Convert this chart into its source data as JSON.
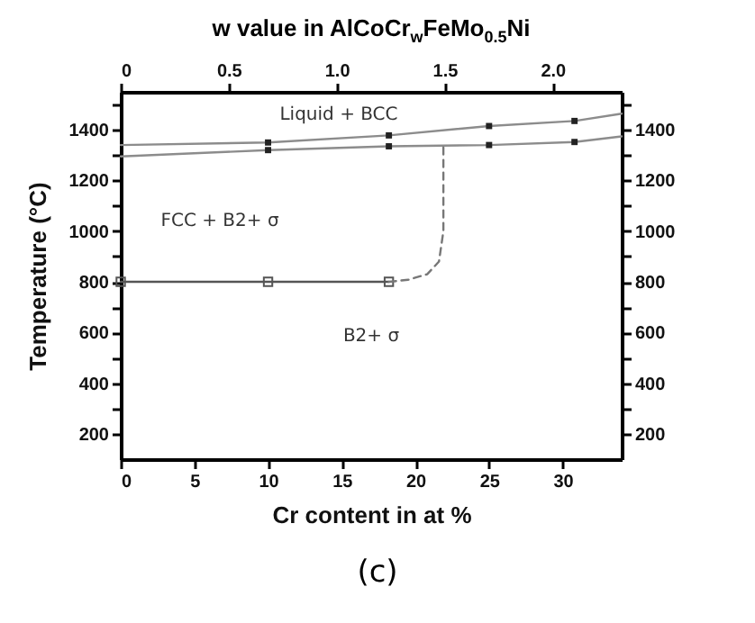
{
  "chart_data": {
    "type": "line",
    "xlabel": "Cr content in at %",
    "ylabel": "Temperature (°C)",
    "x2label": "w value in AlCoCr$_{w}$FeMo$_{0.5}$Ni",
    "xlim": [
      0,
      34
    ],
    "xticks": [
      0,
      5,
      10,
      15,
      20,
      25,
      30
    ],
    "x2lim": [
      0,
      2.32
    ],
    "x2ticks": [
      0,
      0.5,
      {
        "value": 1,
        "label": "1.0"
      },
      1.5,
      {
        "value": 2,
        "label": "2.0"
      }
    ],
    "ylim": [
      100,
      1550
    ],
    "yticks": [
      200,
      {
        "value": 300,
        "label": null
      },
      400,
      {
        "value": 500,
        "label": null
      },
      600,
      {
        "value": 700,
        "label": null
      },
      800,
      {
        "value": 900,
        "label": null
      },
      1000,
      {
        "value": 1100,
        "label": null
      },
      1200,
      {
        "value": 1300,
        "label": null
      },
      1400,
      {
        "value": 1500,
        "label": null
      }
    ],
    "y2lim": [
      100,
      1550
    ],
    "y2ticks": [
      200,
      {
        "value": 300,
        "label": null
      },
      400,
      {
        "value": 500,
        "label": null
      },
      600,
      {
        "value": 700,
        "label": null
      },
      800,
      {
        "value": 900,
        "label": null
      },
      1000,
      {
        "value": 1100,
        "label": null
      },
      1200,
      {
        "value": 1300,
        "label": null
      },
      1400,
      {
        "value": 1500,
        "label": null
      }
    ],
    "grid": false,
    "series": [
      {
        "x": [
          0,
          10,
          18.2,
          25,
          30.8,
          34
        ],
        "values": [
          1340,
          1350,
          1378,
          1415,
          1435,
          1464
        ],
        "color": "#8c8c8c"
      },
      {
        "x": [
          0,
          10,
          18.2,
          25,
          30.8,
          34
        ],
        "values": [
          1295,
          1320,
          1335,
          1340,
          1352,
          1374
        ],
        "color": "#8c8c8c"
      },
      {
        "x": [
          0,
          10,
          18.2
        ],
        "values": [
          800,
          800,
          800
        ],
        "color": "#555555",
        "marker": "square"
      },
      {
        "x": [
          18.2,
          19.5,
          20.8,
          21.6,
          21.9,
          21.9
        ],
        "values": [
          800,
          808,
          830,
          880,
          1000,
          1338
        ],
        "color": "#777777",
        "line_style": "dashed"
      },
      {
        "type": "scatter",
        "x": [
          10,
          18.2,
          25,
          30.8,
          10,
          18.2,
          25,
          30.8
        ],
        "values": [
          1350,
          1378,
          1415,
          1435,
          1320,
          1335,
          1340,
          1352
        ],
        "color": "#222222",
        "marker": "square"
      }
    ],
    "annotations": [
      "Liquid + BCC",
      "FCC + B2+ σ",
      "B2+ σ",
      "(c)"
    ]
  }
}
